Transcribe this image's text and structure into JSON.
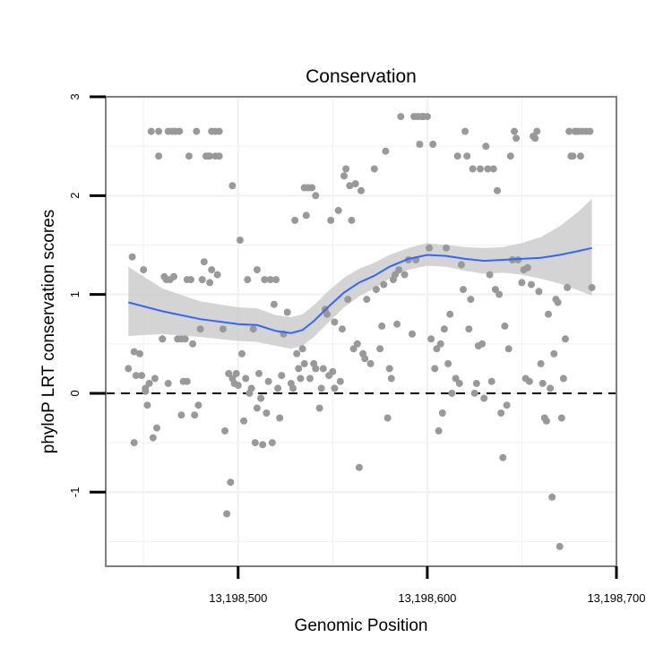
{
  "chart_data": {
    "type": "scatter",
    "title": "Conservation",
    "xlabel": "Genomic Position",
    "ylabel": "phyloP LRT conservation scores",
    "xlim": [
      13198430,
      13198700
    ],
    "ylim": [
      -1.75,
      3
    ],
    "x_ticks": [
      13198500,
      13198600,
      13198700
    ],
    "x_tick_labels": [
      "13,198,500",
      "13,198,600",
      "13,198,700"
    ],
    "y_ticks": [
      -1,
      0,
      1,
      2,
      3
    ],
    "y_tick_labels": [
      "-1",
      "0",
      "1",
      "2",
      "3"
    ],
    "grid": true,
    "reference_line": {
      "y": 0,
      "style": "dashed"
    },
    "colors": {
      "points": "#999999",
      "smooth": "#3366ff",
      "band": "#cccccc",
      "panel_border": "#7f7f7f",
      "grid": "#f2f2f2"
    },
    "points": [
      [
        13198442,
        0.25
      ],
      [
        13198444,
        1.38
      ],
      [
        13198445,
        -0.5
      ],
      [
        13198445,
        0.42
      ],
      [
        13198446,
        0.18
      ],
      [
        13198448,
        0.4
      ],
      [
        13198449,
        0.18
      ],
      [
        13198450,
        1.25
      ],
      [
        13198451,
        0.05
      ],
      [
        13198451,
        0.02
      ],
      [
        13198452,
        -0.12
      ],
      [
        13198453,
        0.1
      ],
      [
        13198454,
        2.65
      ],
      [
        13198455,
        -0.45
      ],
      [
        13198456,
        0.15
      ],
      [
        13198457,
        -0.35
      ],
      [
        13198458,
        2.65
      ],
      [
        13198458,
        2.4
      ],
      [
        13198460,
        0.55
      ],
      [
        13198460,
        0.55
      ],
      [
        13198461,
        1.18
      ],
      [
        13198462,
        1.15
      ],
      [
        13198463,
        0.1
      ],
      [
        13198463,
        2.65
      ],
      [
        13198464,
        1.15
      ],
      [
        13198465,
        2.65
      ],
      [
        13198466,
        1.18
      ],
      [
        13198466,
        2.65
      ],
      [
        13198467,
        2.65
      ],
      [
        13198468,
        0.55
      ],
      [
        13198469,
        2.65
      ],
      [
        13198470,
        -0.22
      ],
      [
        13198470,
        0.55
      ],
      [
        13198471,
        0.12
      ],
      [
        13198472,
        0.55
      ],
      [
        13198473,
        1.15
      ],
      [
        13198473,
        0.12
      ],
      [
        13198474,
        2.4
      ],
      [
        13198475,
        1.15
      ],
      [
        13198476,
        0.5
      ],
      [
        13198477,
        -0.22
      ],
      [
        13198478,
        2.65
      ],
      [
        13198479,
        -0.12
      ],
      [
        13198480,
        0.65
      ],
      [
        13198481,
        1.15
      ],
      [
        13198482,
        1.33
      ],
      [
        13198483,
        2.4
      ],
      [
        13198484,
        2.4
      ],
      [
        13198485,
        2.4
      ],
      [
        13198485,
        1.12
      ],
      [
        13198486,
        1.25
      ],
      [
        13198486,
        2.65
      ],
      [
        13198488,
        2.4
      ],
      [
        13198488,
        2.65
      ],
      [
        13198489,
        1.2
      ],
      [
        13198490,
        2.65
      ],
      [
        13198490,
        2.4
      ],
      [
        13198492,
        0.65
      ],
      [
        13198493,
        -0.38
      ],
      [
        13198494,
        -1.22
      ],
      [
        13198495,
        0.2
      ],
      [
        13198496,
        -0.9
      ],
      [
        13198497,
        2.1
      ],
      [
        13198497,
        0.15
      ],
      [
        13198498,
        0.1
      ],
      [
        13198499,
        0.2
      ],
      [
        13198500,
        0.08
      ],
      [
        13198501,
        1.55
      ],
      [
        13198502,
        0.4
      ],
      [
        13198503,
        -0.28
      ],
      [
        13198504,
        0.15
      ],
      [
        13198505,
        1.15
      ],
      [
        13198506,
        0.0
      ],
      [
        13198507,
        0.05
      ],
      [
        13198508,
        0.65
      ],
      [
        13198509,
        -0.5
      ],
      [
        13198510,
        1.25
      ],
      [
        13198510,
        -0.15
      ],
      [
        13198511,
        0.2
      ],
      [
        13198512,
        -0.05
      ],
      [
        13198513,
        -0.52
      ],
      [
        13198514,
        1.15
      ],
      [
        13198515,
        -0.2
      ],
      [
        13198516,
        0.12
      ],
      [
        13198517,
        1.15
      ],
      [
        13198518,
        -0.5
      ],
      [
        13198519,
        0.9
      ],
      [
        13198520,
        1.15
      ],
      [
        13198521,
        0.05
      ],
      [
        13198522,
        -0.25
      ],
      [
        13198523,
        0.18
      ],
      [
        13198524,
        0.6
      ],
      [
        13198526,
        0.82
      ],
      [
        13198528,
        0.1
      ],
      [
        13198529,
        0.05
      ],
      [
        13198530,
        1.75
      ],
      [
        13198531,
        0.4
      ],
      [
        13198532,
        0.25
      ],
      [
        13198533,
        0.15
      ],
      [
        13198534,
        0.45
      ],
      [
        13198535,
        0.3
      ],
      [
        13198535,
        2.08
      ],
      [
        13198536,
        1.8
      ],
      [
        13198537,
        2.08
      ],
      [
        13198538,
        0.15
      ],
      [
        13198539,
        2.08
      ],
      [
        13198540,
        0.3
      ],
      [
        13198541,
        2.0
      ],
      [
        13198541,
        0.25
      ],
      [
        13198543,
        -0.15
      ],
      [
        13198544,
        0.05
      ],
      [
        13198545,
        0.25
      ],
      [
        13198546,
        0.85
      ],
      [
        13198547,
        0.8
      ],
      [
        13198548,
        0.18
      ],
      [
        13198549,
        1.75
      ],
      [
        13198550,
        0.22
      ],
      [
        13198551,
        0.05
      ],
      [
        13198551,
        0.72
      ],
      [
        13198553,
        1.85
      ],
      [
        13198554,
        0.12
      ],
      [
        13198555,
        0.65
      ],
      [
        13198556,
        2.2
      ],
      [
        13198557,
        2.27
      ],
      [
        13198558,
        0.95
      ],
      [
        13198559,
        2.1
      ],
      [
        13198560,
        1.75
      ],
      [
        13198561,
        0.45
      ],
      [
        13198562,
        2.12
      ],
      [
        13198563,
        0.5
      ],
      [
        13198564,
        -0.75
      ],
      [
        13198565,
        2.05
      ],
      [
        13198566,
        0.4
      ],
      [
        13198567,
        0.35
      ],
      [
        13198568,
        0.95
      ],
      [
        13198570,
        0.3
      ],
      [
        13198572,
        2.27
      ],
      [
        13198573,
        1.05
      ],
      [
        13198575,
        0.45
      ],
      [
        13198576,
        0.68
      ],
      [
        13198577,
        1.1
      ],
      [
        13198578,
        2.45
      ],
      [
        13198579,
        -0.25
      ],
      [
        13198580,
        0.25
      ],
      [
        13198581,
        0.15
      ],
      [
        13198582,
        1.15
      ],
      [
        13198583,
        1.2
      ],
      [
        13198584,
        0.7
      ],
      [
        13198585,
        1.25
      ],
      [
        13198586,
        2.8
      ],
      [
        13198588,
        1.2
      ],
      [
        13198590,
        1.35
      ],
      [
        13198592,
        0.6
      ],
      [
        13198593,
        2.8
      ],
      [
        13198594,
        1.35
      ],
      [
        13198595,
        2.8
      ],
      [
        13198596,
        2.52
      ],
      [
        13198597,
        2.8
      ],
      [
        13198598,
        2.8
      ],
      [
        13198600,
        2.8
      ],
      [
        13198601,
        1.47
      ],
      [
        13198602,
        0.55
      ],
      [
        13198603,
        2.52
      ],
      [
        13198604,
        0.25
      ],
      [
        13198605,
        0.45
      ],
      [
        13198606,
        -0.38
      ],
      [
        13198607,
        0.5
      ],
      [
        13198608,
        -0.2
      ],
      [
        13198609,
        0.65
      ],
      [
        13198610,
        1.47
      ],
      [
        13198611,
        0.3
      ],
      [
        13198612,
        0.8
      ],
      [
        13198613,
        0.0
      ],
      [
        13198615,
        0.15
      ],
      [
        13198616,
        2.4
      ],
      [
        13198617,
        0.1
      ],
      [
        13198618,
        1.3
      ],
      [
        13198619,
        1.05
      ],
      [
        13198620,
        2.65
      ],
      [
        13198621,
        2.4
      ],
      [
        13198622,
        0.65
      ],
      [
        13198623,
        0.95
      ],
      [
        13198624,
        2.27
      ],
      [
        13198625,
        0.0
      ],
      [
        13198626,
        0.1
      ],
      [
        13198627,
        0.48
      ],
      [
        13198628,
        2.27
      ],
      [
        13198629,
        0.5
      ],
      [
        13198630,
        -0.05
      ],
      [
        13198631,
        2.5
      ],
      [
        13198632,
        2.27
      ],
      [
        13198633,
        1.2
      ],
      [
        13198634,
        0.12
      ],
      [
        13198635,
        2.27
      ],
      [
        13198636,
        1.05
      ],
      [
        13198637,
        2.05
      ],
      [
        13198638,
        1.0
      ],
      [
        13198639,
        -0.2
      ],
      [
        13198640,
        -0.65
      ],
      [
        13198641,
        0.68
      ],
      [
        13198642,
        -0.12
      ],
      [
        13198643,
        0.45
      ],
      [
        13198644,
        2.4
      ],
      [
        13198645,
        1.35
      ],
      [
        13198646,
        2.65
      ],
      [
        13198647,
        2.58
      ],
      [
        13198648,
        1.35
      ],
      [
        13198650,
        1.12
      ],
      [
        13198651,
        1.25
      ],
      [
        13198652,
        0.15
      ],
      [
        13198653,
        1.27
      ],
      [
        13198654,
        0.12
      ],
      [
        13198655,
        1.1
      ],
      [
        13198656,
        2.6
      ],
      [
        13198657,
        2.58
      ],
      [
        13198658,
        2.65
      ],
      [
        13198659,
        1.03
      ],
      [
        13198660,
        0.3
      ],
      [
        13198661,
        0.1
      ],
      [
        13198662,
        -0.25
      ],
      [
        13198663,
        -0.28
      ],
      [
        13198664,
        0.8
      ],
      [
        13198665,
        0.05
      ],
      [
        13198666,
        -1.05
      ],
      [
        13198667,
        0.4
      ],
      [
        13198668,
        0.95
      ],
      [
        13198669,
        0.92
      ],
      [
        13198670,
        -1.55
      ],
      [
        13198671,
        -0.25
      ],
      [
        13198672,
        0.15
      ],
      [
        13198673,
        0.55
      ],
      [
        13198674,
        1.07
      ],
      [
        13198675,
        2.65
      ],
      [
        13198676,
        2.4
      ],
      [
        13198677,
        2.4
      ],
      [
        13198678,
        2.65
      ],
      [
        13198679,
        2.65
      ],
      [
        13198680,
        2.65
      ],
      [
        13198681,
        2.4
      ],
      [
        13198682,
        2.65
      ],
      [
        13198684,
        2.65
      ],
      [
        13198686,
        2.65
      ],
      [
        13198687,
        1.07
      ]
    ],
    "smooth": {
      "x": [
        13198442,
        13198460,
        13198480,
        13198500,
        13198510,
        13198520,
        13198528,
        13198534,
        13198540,
        13198548,
        13198556,
        13198564,
        13198572,
        13198580,
        13198590,
        13198600,
        13198610,
        13198620,
        13198630,
        13198640,
        13198650,
        13198660,
        13198670,
        13198680,
        13198687
      ],
      "y": [
        0.92,
        0.83,
        0.75,
        0.7,
        0.69,
        0.63,
        0.61,
        0.64,
        0.73,
        0.88,
        1.02,
        1.12,
        1.19,
        1.28,
        1.36,
        1.4,
        1.39,
        1.36,
        1.34,
        1.35,
        1.36,
        1.37,
        1.4,
        1.44,
        1.47
      ],
      "lower": [
        0.58,
        0.6,
        0.57,
        0.53,
        0.52,
        0.48,
        0.45,
        0.48,
        0.57,
        0.72,
        0.87,
        0.98,
        1.06,
        1.16,
        1.25,
        1.29,
        1.28,
        1.24,
        1.21,
        1.22,
        1.2,
        1.16,
        1.11,
        1.04,
        0.99
      ],
      "upper": [
        1.28,
        1.06,
        0.93,
        0.87,
        0.86,
        0.79,
        0.77,
        0.8,
        0.89,
        1.04,
        1.17,
        1.26,
        1.32,
        1.4,
        1.47,
        1.52,
        1.5,
        1.48,
        1.47,
        1.48,
        1.52,
        1.58,
        1.69,
        1.84,
        1.97
      ]
    }
  }
}
